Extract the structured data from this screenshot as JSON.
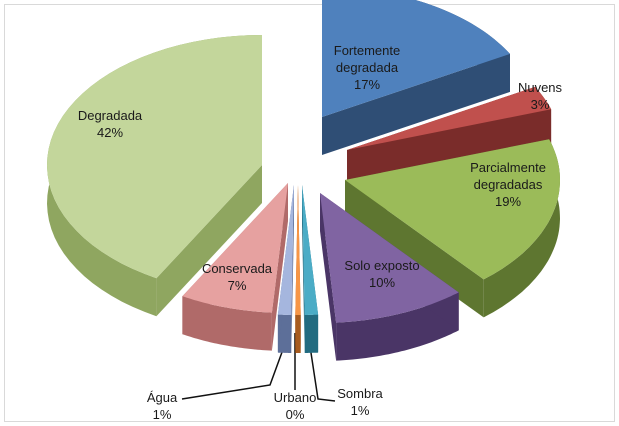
{
  "chart_data": {
    "type": "pie",
    "title": "",
    "slices": [
      {
        "label_lines": [
          "Fortemente",
          "degradada"
        ],
        "value": 17,
        "value_label": "17%",
        "color": "#4f81bd",
        "side": "#2f4e75"
      },
      {
        "label_lines": [
          "Nuvens"
        ],
        "value": 3,
        "value_label": "3%",
        "color": "#c0504d",
        "side": "#7a2c2a"
      },
      {
        "label_lines": [
          "Parcialmente",
          "degradadas"
        ],
        "value": 19,
        "value_label": "19%",
        "color": "#9bbb59",
        "side": "#5e7630"
      },
      {
        "label_lines": [
          "Solo exposto"
        ],
        "value": 10,
        "value_label": "10%",
        "color": "#8064a2",
        "side": "#4a3566"
      },
      {
        "label_lines": [
          "Sombra"
        ],
        "value": 1,
        "value_label": "1%",
        "color": "#4bacc6",
        "side": "#226b80"
      },
      {
        "label_lines": [
          "Urbano"
        ],
        "value": 0,
        "value_label": "0%",
        "color": "#f79646",
        "side": "#a85c1f"
      },
      {
        "label_lines": [
          "Água"
        ],
        "value": 1,
        "value_label": "1%",
        "color": "#a5b6de",
        "side": "#5d6f99"
      },
      {
        "label_lines": [
          "Conservada"
        ],
        "value": 7,
        "value_label": "7%",
        "color": "#e6a1a0",
        "side": "#b06a69"
      },
      {
        "label_lines": [
          "Degradada"
        ],
        "value": 42,
        "value_label": "42%",
        "color": "#c3d69b",
        "side": "#8fa660"
      }
    ]
  }
}
